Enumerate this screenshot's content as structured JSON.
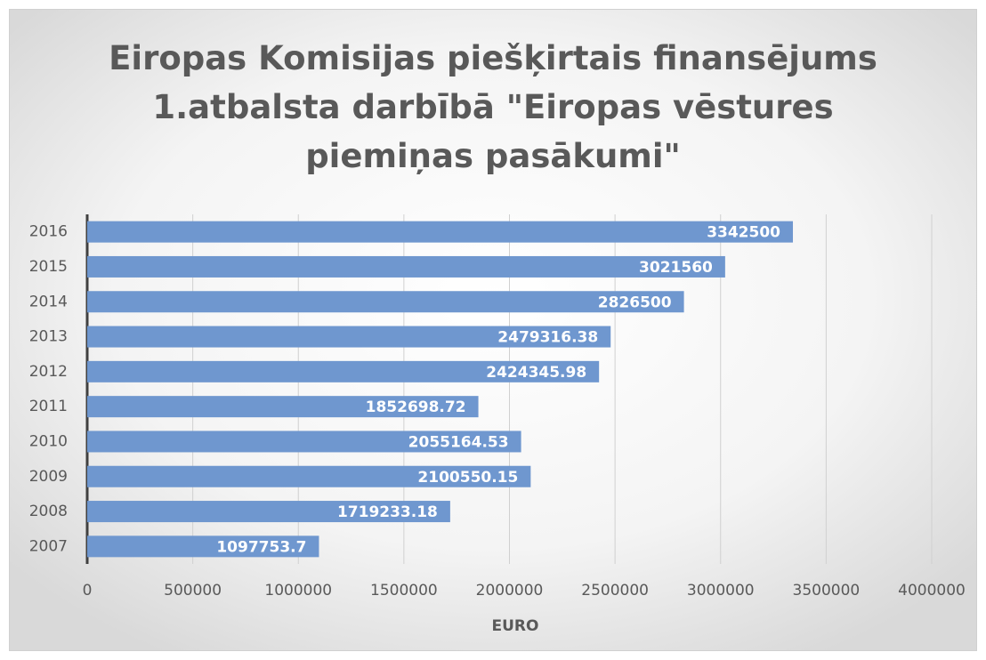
{
  "chart_data": {
    "type": "barh",
    "title": "Eiropas Komisijas piešķirtais finansējums 1.atbalsta darbībā \"Eiropas vēstures piemiņas pasākumi\"",
    "categories": [
      "2016",
      "2015",
      "2014",
      "2013",
      "2012",
      "2011",
      "2010",
      "2009",
      "2008",
      "2007"
    ],
    "values": [
      3342500,
      3021560,
      2826500,
      2479316.38,
      2424345.98,
      1852698.72,
      2055164.53,
      2100550.15,
      1719233.18,
      1097753.7
    ],
    "color": "#6f97cf",
    "xlabel": "EURO",
    "xlim": [
      0,
      4000000
    ],
    "xticks": [
      0,
      500000,
      1000000,
      1500000,
      2000000,
      2500000,
      3000000,
      3500000,
      4000000
    ],
    "grid": true
  }
}
